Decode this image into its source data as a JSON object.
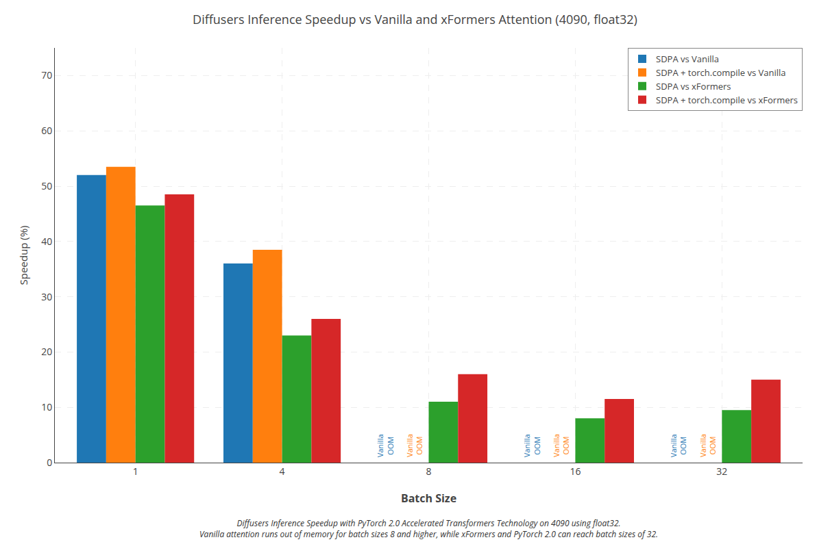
{
  "chart_data": {
    "type": "bar",
    "title": "Diffusers Inference Speedup vs Vanilla and xFormers Attention (4090, float32)",
    "xlabel": "Batch Size",
    "ylabel": "Speedup (%)",
    "caption": "Diffusers Inference Speedup with PyTorch 2.0 Accelerated Transformers Technology on 4090 using float32.\nVanilla attention runs out of memory for batch sizes 8 and higher, while xFormers and PyTorch 2.0 can reach batch sizes of 32.",
    "categories": [
      "1",
      "4",
      "8",
      "16",
      "32"
    ],
    "series": [
      {
        "name": "SDPA vs Vanilla",
        "color": "#1f77b4",
        "values": [
          52.0,
          36.0,
          null,
          null,
          null
        ]
      },
      {
        "name": "SDPA + torch.compile vs Vanilla",
        "color": "#ff7f0e",
        "values": [
          53.5,
          38.5,
          null,
          null,
          null
        ]
      },
      {
        "name": "SDPA vs xFormers",
        "color": "#2ca02c",
        "values": [
          46.5,
          23.0,
          11.0,
          8.0,
          9.5
        ]
      },
      {
        "name": "SDPA + torch.compile vs xFormers",
        "color": "#d62728",
        "values": [
          48.5,
          26.0,
          16.0,
          11.5,
          15.0
        ]
      }
    ],
    "annotations": [
      {
        "text": "Vanilla\nOOM",
        "category": "8",
        "series": "SDPA vs Vanilla"
      },
      {
        "text": "Vanilla\nOOM",
        "category": "16",
        "series": "SDPA vs Vanilla"
      },
      {
        "text": "Vanilla\nOOM",
        "category": "32",
        "series": "SDPA vs Vanilla"
      },
      {
        "text": "Vanilla\nOOM",
        "category": "8",
        "series": "SDPA + torch.compile vs Vanilla"
      },
      {
        "text": "Vanilla\nOOM",
        "category": "16",
        "series": "SDPA + torch.compile vs Vanilla"
      },
      {
        "text": "Vanilla\nOOM",
        "category": "32",
        "series": "SDPA + torch.compile vs Vanilla"
      }
    ],
    "ylim": [
      0,
      75
    ],
    "yticks": [
      0,
      10,
      20,
      30,
      40,
      50,
      60,
      70
    ],
    "grid": true,
    "legend": "upper right"
  }
}
